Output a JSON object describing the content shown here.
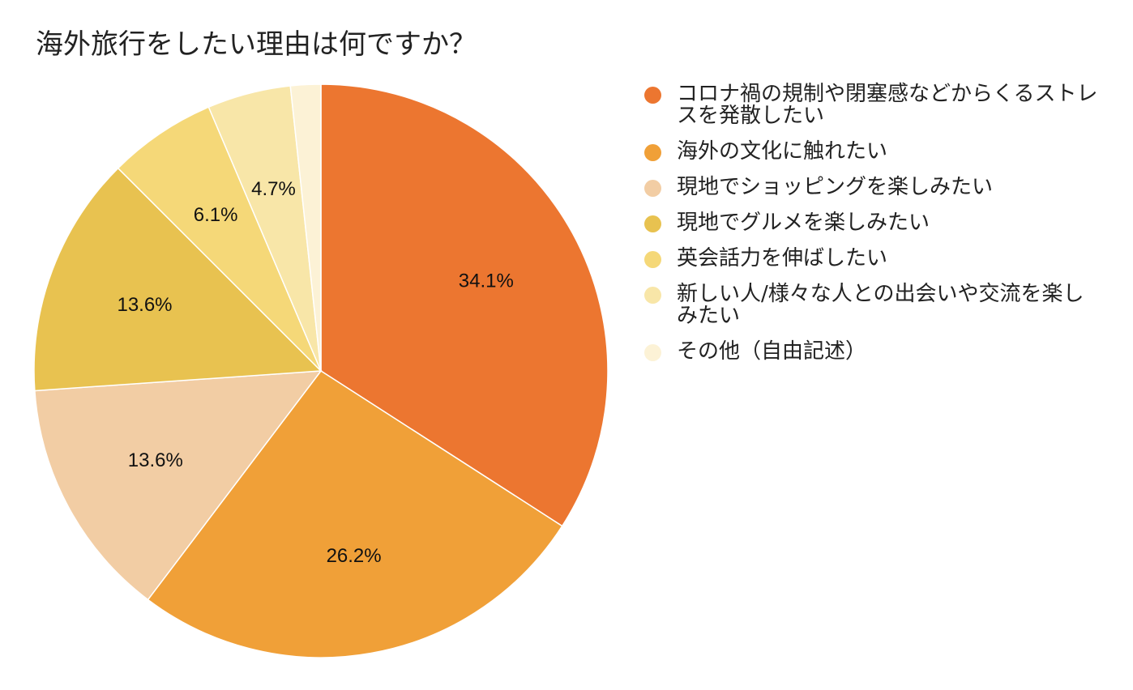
{
  "chart_data": {
    "type": "pie",
    "title": "海外旅行をしたい理由は何ですか？",
    "legend_position": "right",
    "slices": [
      {
        "label": "コロナ禍の規制や閉塞感などからくるストレスを発散したい",
        "value": 34.1,
        "value_label": "34.1%",
        "color": "#ec7630"
      },
      {
        "label": "海外の文化に触れたい",
        "value": 26.2,
        "value_label": "26.2%",
        "color": "#f0a038"
      },
      {
        "label": "現地でショッピングを楽しみたい",
        "value": 13.6,
        "value_label": "13.6%",
        "color": "#f2cda4"
      },
      {
        "label": "現地でグルメを楽しみたい",
        "value": 13.6,
        "value_label": "13.6%",
        "color": "#e8c250"
      },
      {
        "label": "英会話力を伸ばしたい",
        "value": 6.1,
        "value_label": "6.1%",
        "color": "#f5d878"
      },
      {
        "label": "新しい人/様々な人との出会いや交流を楽しみたい",
        "value": 4.7,
        "value_label": "4.7%",
        "color": "#f8e6a8"
      },
      {
        "label": "その他（自由記述）",
        "value": 1.7,
        "value_label": "",
        "color": "#fcf2d6"
      }
    ]
  }
}
